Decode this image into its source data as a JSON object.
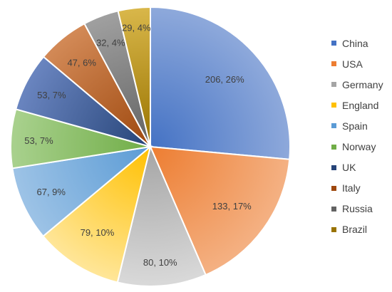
{
  "chart_data": {
    "type": "pie",
    "categories": [
      "China",
      "USA",
      "Germany",
      "England",
      "Spain",
      "Norway",
      "UK",
      "Italy",
      "Russia",
      "Brazil"
    ],
    "values": [
      206,
      133,
      80,
      79,
      67,
      53,
      53,
      47,
      32,
      29
    ],
    "percent_labels": [
      "26%",
      "17%",
      "10%",
      "10%",
      "9%",
      "7%",
      "7%",
      "6%",
      "4%",
      "4%"
    ],
    "data_labels": [
      "206, 26%",
      "133, 17%",
      "80, 10%",
      "79, 10%",
      "67, 9%",
      "53, 7%",
      "53, 7%",
      "47, 6%",
      "32, 4%",
      "29, 4%"
    ],
    "legend_position": "right",
    "colors": [
      "#4472C4",
      "#ED7D31",
      "#A5A5A5",
      "#FFC000",
      "#5B9BD5",
      "#70AD47",
      "#264478",
      "#9E480E",
      "#636363",
      "#997300"
    ],
    "colors_light": [
      "#8EA9DB",
      "#F4B183",
      "#D9D9D9",
      "#FFE699",
      "#9DC3E6",
      "#A9D18E",
      "#6A85C0",
      "#D38A57",
      "#A0A0A0",
      "#D9B74A"
    ]
  }
}
